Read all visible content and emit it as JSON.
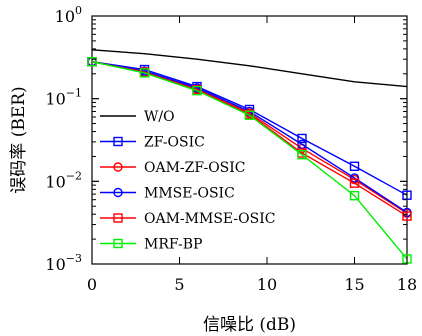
{
  "chart_data": {
    "type": "line",
    "title": "",
    "xlabel": "信噪比 (dB)",
    "ylabel": "误码率 (BER)",
    "x": [
      0,
      3,
      6,
      9,
      12,
      15,
      18
    ],
    "x_ticks": [
      0,
      5,
      10,
      15,
      18
    ],
    "x_tick_labels": [
      "0",
      "5",
      "10",
      "15",
      "18"
    ],
    "xlim": [
      0,
      18
    ],
    "y_scale": "log",
    "ylim": [
      0.001,
      1
    ],
    "y_tick_labels": [
      {
        "value": 1,
        "base": "10",
        "exp": "0"
      },
      {
        "value": 0.1,
        "base": "10",
        "exp": "−1"
      },
      {
        "value": 0.01,
        "base": "10",
        "exp": "−2"
      },
      {
        "value": 0.001,
        "base": "10",
        "exp": "−3"
      }
    ],
    "grid": false,
    "legend_position": "left-center",
    "series": [
      {
        "name": "W/O",
        "color": "#000000",
        "marker": "none",
        "values": [
          0.39,
          0.35,
          0.3,
          0.25,
          0.2,
          0.16,
          0.14
        ]
      },
      {
        "name": "ZF-OSIC",
        "color": "#0000ff",
        "marker": "square",
        "values": [
          0.28,
          0.225,
          0.14,
          0.074,
          0.033,
          0.0152,
          0.0068
        ]
      },
      {
        "name": "OAM-ZF-OSIC",
        "color": "#ff0000",
        "marker": "circle",
        "values": [
          0.28,
          0.21,
          0.13,
          0.067,
          0.025,
          0.0105,
          0.0041
        ]
      },
      {
        "name": "MMSE-OSIC",
        "color": "#0000ff",
        "marker": "circle",
        "values": [
          0.28,
          0.215,
          0.135,
          0.07,
          0.028,
          0.011,
          0.0042
        ]
      },
      {
        "name": "OAM-MMSE-OSIC",
        "color": "#ff0000",
        "marker": "square",
        "values": [
          0.28,
          0.21,
          0.128,
          0.065,
          0.022,
          0.0095,
          0.0038
        ]
      },
      {
        "name": "MRF-BP",
        "color": "#00ee00",
        "marker": "square",
        "values": [
          0.28,
          0.205,
          0.125,
          0.063,
          0.021,
          0.0067,
          0.00115
        ]
      }
    ]
  }
}
